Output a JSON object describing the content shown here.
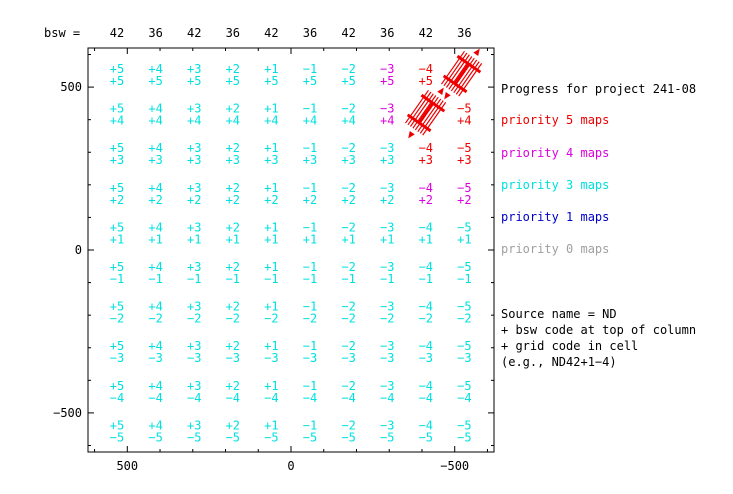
{
  "chart_data": {
    "type": "table",
    "title": "Progress for project 241-08",
    "xlim": [
      620,
      -620
    ],
    "ylim": [
      -620,
      620
    ],
    "x_ticks": [
      "500",
      "0",
      "−500"
    ],
    "y_ticks": [
      "500",
      "0",
      "−500"
    ],
    "bsw_label": "bsw =",
    "bsw_codes": [
      "42",
      "36",
      "42",
      "36",
      "42",
      "36",
      "42",
      "36",
      "42",
      "36"
    ],
    "col_codes": [
      "+5",
      "+4",
      "+3",
      "+2",
      "+1",
      "−1",
      "−2",
      "−3",
      "−4",
      "−5"
    ],
    "row_codes": [
      "+5",
      "+4",
      "+3",
      "+2",
      "+1",
      "−1",
      "−2",
      "−3",
      "−4",
      "−5"
    ],
    "cell_priority": [
      [
        3,
        3,
        3,
        3,
        3,
        3,
        3,
        4,
        5,
        0
      ],
      [
        3,
        3,
        3,
        3,
        3,
        3,
        3,
        4,
        0,
        5
      ],
      [
        3,
        3,
        3,
        3,
        3,
        3,
        3,
        3,
        5,
        5
      ],
      [
        3,
        3,
        3,
        3,
        3,
        3,
        3,
        3,
        4,
        4
      ],
      [
        3,
        3,
        3,
        3,
        3,
        3,
        3,
        3,
        3,
        3
      ],
      [
        3,
        3,
        3,
        3,
        3,
        3,
        3,
        3,
        3,
        3
      ],
      [
        3,
        3,
        3,
        3,
        3,
        3,
        3,
        3,
        3,
        3
      ],
      [
        3,
        3,
        3,
        3,
        3,
        3,
        3,
        3,
        3,
        3
      ],
      [
        3,
        3,
        3,
        3,
        3,
        3,
        3,
        3,
        3,
        3
      ],
      [
        3,
        3,
        3,
        3,
        3,
        3,
        3,
        3,
        3,
        3
      ]
    ],
    "legend": [
      {
        "label": "priority 5 maps",
        "color": "#ee0000"
      },
      {
        "label": "priority 4 maps",
        "color": "#dd00dd"
      },
      {
        "label": "priority 3 maps",
        "color": "#00e0e0"
      },
      {
        "label": "priority 1 maps",
        "color": "#0000cc"
      },
      {
        "label": "priority 0 maps",
        "color": "#a0a0a0"
      }
    ],
    "notes": [
      "Source name = ND",
      " + bsw code at top of column",
      " + grid code in cell",
      "(e.g., ND42+1−4)"
    ]
  }
}
